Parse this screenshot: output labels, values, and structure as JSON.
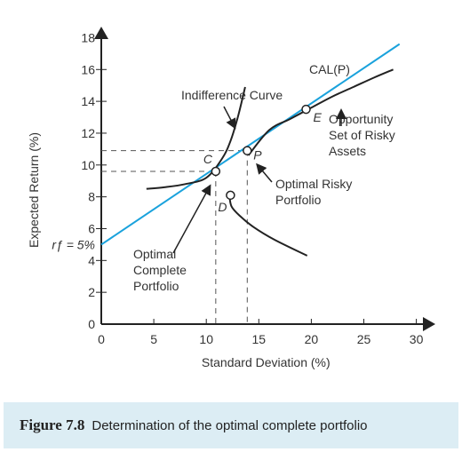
{
  "caption": {
    "label": "Figure 7.8",
    "text": "Determination of the optimal complete portfolio"
  },
  "chart_data": {
    "type": "line",
    "xlabel": "Standard Deviation (%)",
    "ylabel": "Expected Return (%)",
    "xlim": [
      0,
      30
    ],
    "ylim": [
      0,
      18
    ],
    "x_ticks": [
      0,
      5,
      10,
      15,
      20,
      25,
      30
    ],
    "y_ticks": [
      0,
      2,
      4,
      6,
      8,
      10,
      12,
      14,
      16,
      18
    ],
    "rf_label": "rƒ = 5%",
    "rf_value": 5,
    "colors": {
      "cal": "#1aa2dc",
      "curve": "#222222",
      "dash": "#555555"
    },
    "series": [
      {
        "name": "CAL(P)",
        "x": [
          0,
          28.4
        ],
        "y": [
          5,
          17.6
        ]
      },
      {
        "name": "Opportunity Set of Risky Assets",
        "x": [
          14,
          16,
          18,
          20,
          22,
          24,
          26,
          27.8
        ],
        "y": [
          10.6,
          12.2,
          12.9,
          13.6,
          14.3,
          14.9,
          15.5,
          16.0
        ]
      },
      {
        "name": "Indifference Curve",
        "x": [
          4.3,
          6,
          8,
          10,
          11.5,
          12.3,
          13,
          13.7
        ],
        "y": [
          8.5,
          8.6,
          8.8,
          9.2,
          10.4,
          11.5,
          13.0,
          14.9
        ]
      },
      {
        "name": "",
        "x": [
          12.2,
          12.4,
          13.2,
          14.5,
          16.5,
          19.6
        ],
        "y": [
          8.1,
          7.4,
          6.8,
          6.1,
          5.3,
          4.3
        ]
      }
    ],
    "points": [
      {
        "label": "C",
        "x": 10.9,
        "y": 9.6
      },
      {
        "label": "P",
        "x": 13.9,
        "y": 10.9
      },
      {
        "label": "E",
        "x": 19.5,
        "y": 13.5
      },
      {
        "label": "D",
        "x": 12.3,
        "y": 8.1
      }
    ],
    "annotations": {
      "cal": "CAL(P)",
      "indifference": "Indifference Curve",
      "opportunity": [
        "Opportunity",
        "Set of Risky",
        "Assets"
      ],
      "optimal_risky": [
        "Optimal Risky",
        "Portfolio"
      ],
      "optimal_complete": [
        "Optimal",
        "Complete",
        "Portfolio"
      ]
    }
  }
}
